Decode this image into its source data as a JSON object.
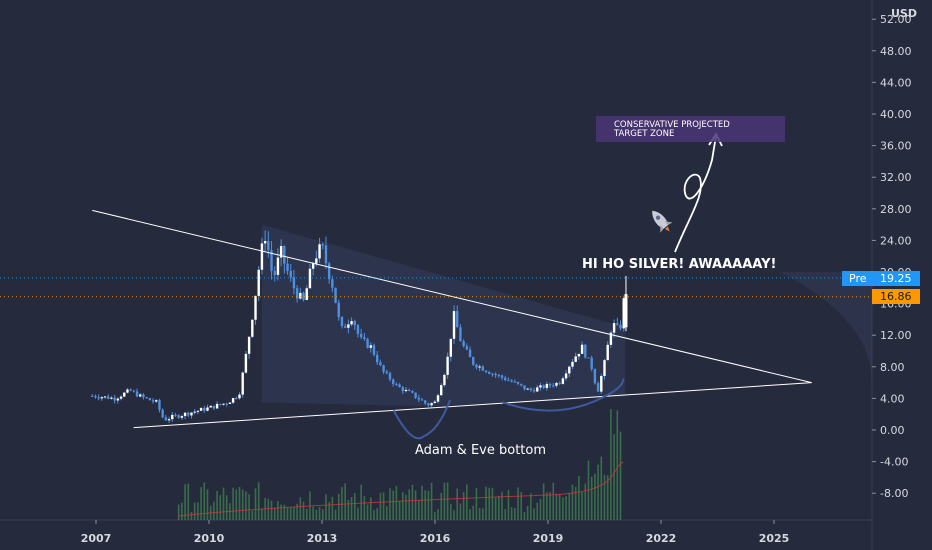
{
  "chart_data": {
    "type": "candlestick",
    "currency_label": "USD",
    "ylim": [
      -12,
      54
    ],
    "y_ticks": [
      "52.00",
      "48.00",
      "44.00",
      "40.00",
      "36.00",
      "32.00",
      "28.00",
      "24.00",
      "20.00",
      "16.00",
      "12.00",
      "8.00",
      "4.00",
      "0.00",
      "-4.00",
      "-8.00"
    ],
    "y_tick_values": [
      52,
      48,
      44,
      40,
      36,
      32,
      28,
      24,
      20,
      16,
      12,
      8,
      4,
      0,
      -4,
      -8
    ],
    "x_ticks": [
      "2007",
      "2010",
      "2013",
      "2016",
      "2019",
      "2022",
      "2025"
    ],
    "x_tick_values": [
      2007,
      2010,
      2013,
      2016,
      2019,
      2022,
      2025
    ],
    "xlim": [
      2006.6,
      2027.1
    ],
    "price_path": [
      [
        2006.0,
        4.2
      ],
      [
        2006.5,
        4.4
      ],
      [
        2007.0,
        4.3
      ],
      [
        2007.5,
        4.0
      ],
      [
        2007.9,
        5.0
      ],
      [
        2008.2,
        4.2
      ],
      [
        2008.6,
        3.5
      ],
      [
        2008.8,
        1.3
      ],
      [
        2009.0,
        1.6
      ],
      [
        2009.5,
        2.2
      ],
      [
        2010.0,
        2.8
      ],
      [
        2010.5,
        3.5
      ],
      [
        2010.8,
        4.5
      ],
      [
        2011.0,
        10.0
      ],
      [
        2011.2,
        16.0
      ],
      [
        2011.35,
        21.5
      ],
      [
        2011.5,
        25.0
      ],
      [
        2011.7,
        19.0
      ],
      [
        2011.9,
        22.5
      ],
      [
        2012.2,
        18.5
      ],
      [
        2012.5,
        16.0
      ],
      [
        2012.8,
        22.0
      ],
      [
        2013.0,
        23.0
      ],
      [
        2013.3,
        18.0
      ],
      [
        2013.5,
        12.5
      ],
      [
        2013.8,
        14.5
      ],
      [
        2014.0,
        11.5
      ],
      [
        2014.3,
        10.5
      ],
      [
        2014.6,
        7.5
      ],
      [
        2015.0,
        5.5
      ],
      [
        2015.4,
        4.5
      ],
      [
        2015.8,
        3.2
      ],
      [
        2016.0,
        3.5
      ],
      [
        2016.3,
        8.0
      ],
      [
        2016.5,
        14.5
      ],
      [
        2016.7,
        11.0
      ],
      [
        2017.0,
        8.5
      ],
      [
        2017.5,
        7.2
      ],
      [
        2018.0,
        6.2
      ],
      [
        2018.5,
        5.0
      ],
      [
        2018.9,
        5.5
      ],
      [
        2019.3,
        6.0
      ],
      [
        2019.6,
        8.5
      ],
      [
        2019.9,
        10.5
      ],
      [
        2020.2,
        7.5
      ],
      [
        2020.3,
        4.5
      ],
      [
        2020.5,
        8.5
      ],
      [
        2020.7,
        13.5
      ],
      [
        2020.9,
        12.5
      ],
      [
        2021.0,
        15.5
      ],
      [
        2021.05,
        19.25
      ]
    ],
    "series": [
      {
        "name": "Pre",
        "value": 19.25,
        "value_label": "19.25",
        "color": "#2196f3"
      },
      {
        "name": "",
        "value": 16.86,
        "value_label": "16.86",
        "color": "#ff9800"
      }
    ],
    "trendlines": [
      {
        "from": [
          2006.9,
          27.8
        ],
        "to": [
          2026.0,
          6.0
        ]
      },
      {
        "from": [
          2008.0,
          0.3
        ],
        "to": [
          2026.0,
          6.0
        ]
      }
    ],
    "annotations": {
      "title_text": "HI HO SILVER! AWAAAAAY!",
      "bottom_label": "Adam & Eve bottom",
      "target_zone_line1": "CONSERVATIVE PROJECTED",
      "target_zone_line2": "TARGET ZONE",
      "target_zone_range": [
        36.3,
        39.5
      ]
    },
    "grid": false,
    "legend": "none",
    "colors": {
      "background": "#262a3d",
      "candle": "#4f8fe0",
      "volume": "#3c7a4c",
      "moving_average": "#c8393a",
      "trendline": "#ffffff",
      "target_zone": "#4a3575",
      "price_line_pre": "#2196f3",
      "price_line_close": "#ff9800"
    },
    "icon": "rocket-icon"
  }
}
